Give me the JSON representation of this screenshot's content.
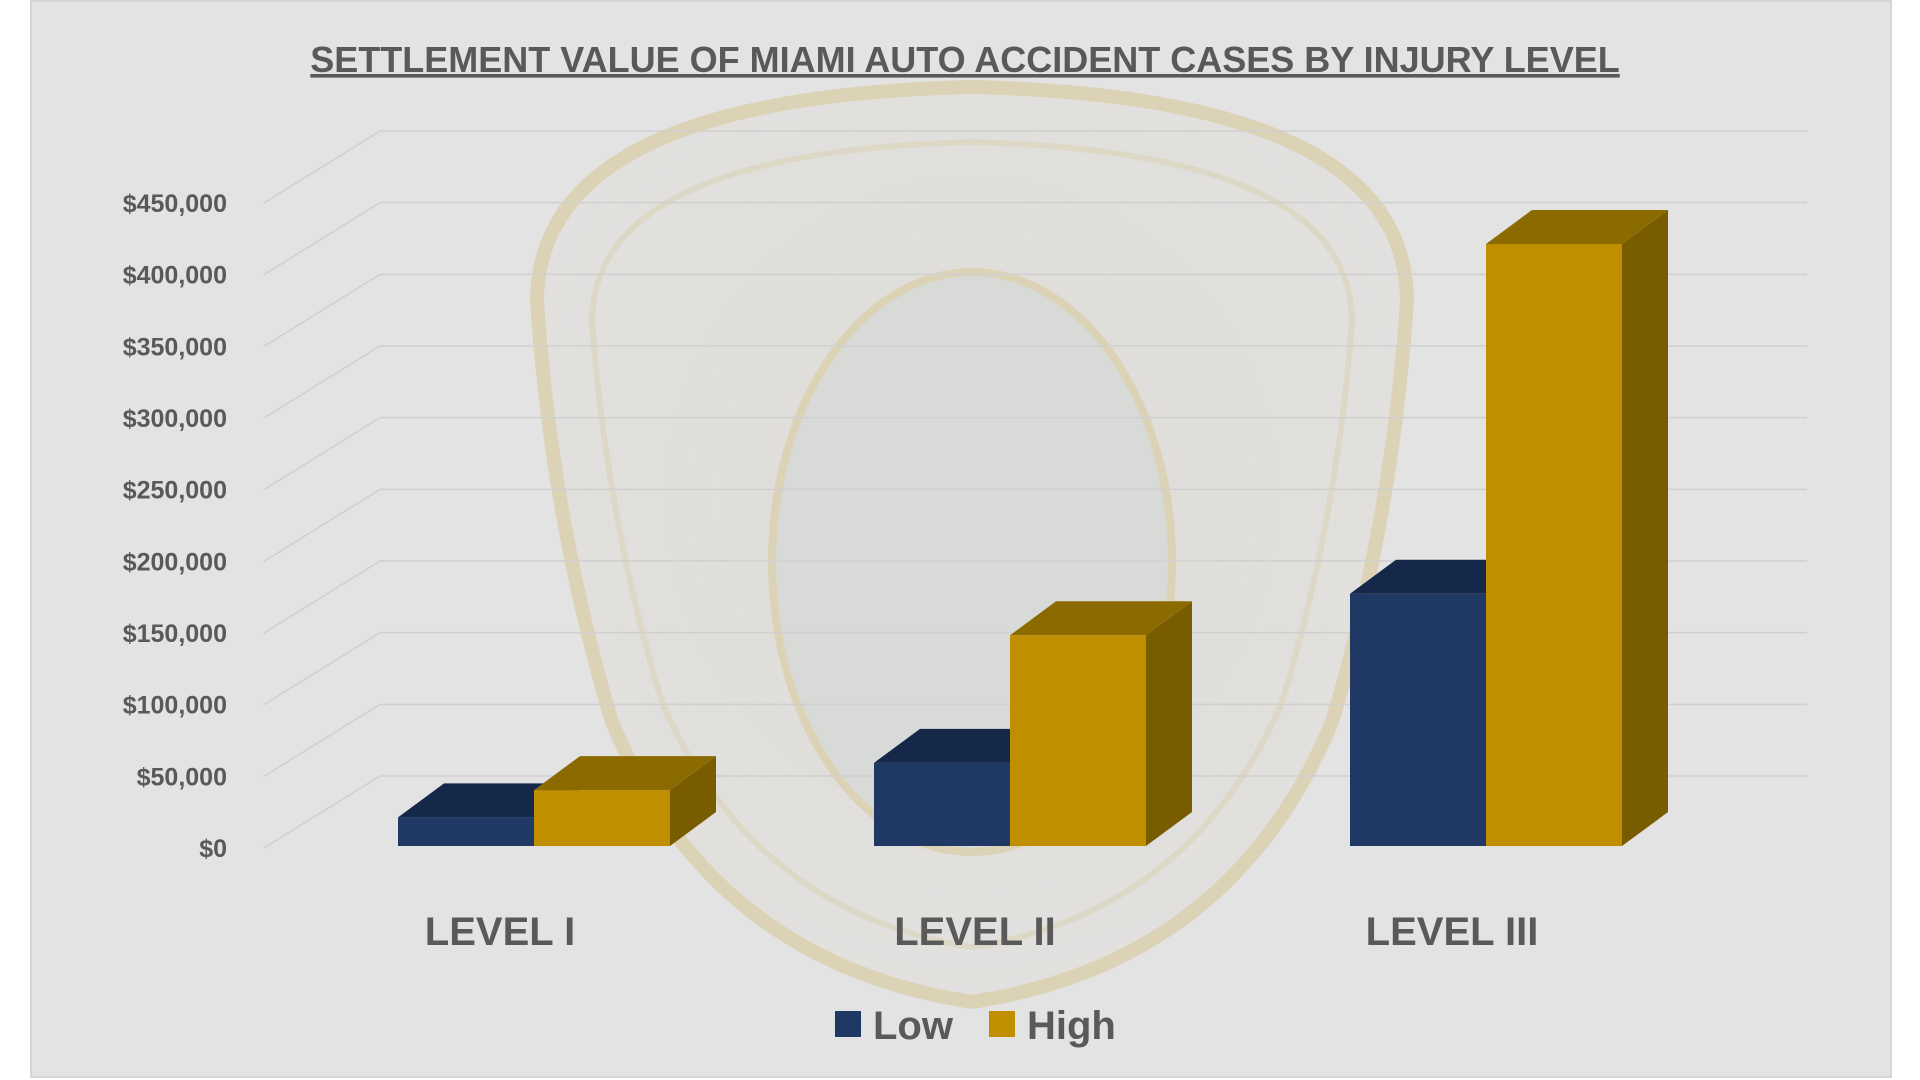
{
  "chart_data": {
    "type": "bar",
    "title": "SETTLEMENT VALUE OF MIAMI AUTO ACCIDENT CASES BY INJURY LEVEL",
    "categories": [
      "LEVEL I",
      "LEVEL II",
      "LEVEL III"
    ],
    "series": [
      {
        "name": "Low",
        "values": [
          20000,
          58000,
          176000
        ],
        "color": "#1f3864",
        "top_color": "#16284a",
        "side_color": "#14243f"
      },
      {
        "name": "High",
        "values": [
          39000,
          147000,
          420000
        ],
        "color": "#bf8f00",
        "top_color": "#8b6a00",
        "side_color": "#7a5c00"
      }
    ],
    "y_ticks": [
      "$0",
      "$50,000",
      "$100,000",
      "$150,000",
      "$200,000",
      "$250,000",
      "$300,000",
      "$350,000",
      "$400,000",
      "$450,000"
    ],
    "ylim": [
      0,
      450000
    ],
    "grid": true,
    "legend_position": "bottom",
    "background_watermark": "Miami-Dade Police Department patch (faded)",
    "background_color": "#e3e3e3",
    "text_color": "#595959"
  }
}
